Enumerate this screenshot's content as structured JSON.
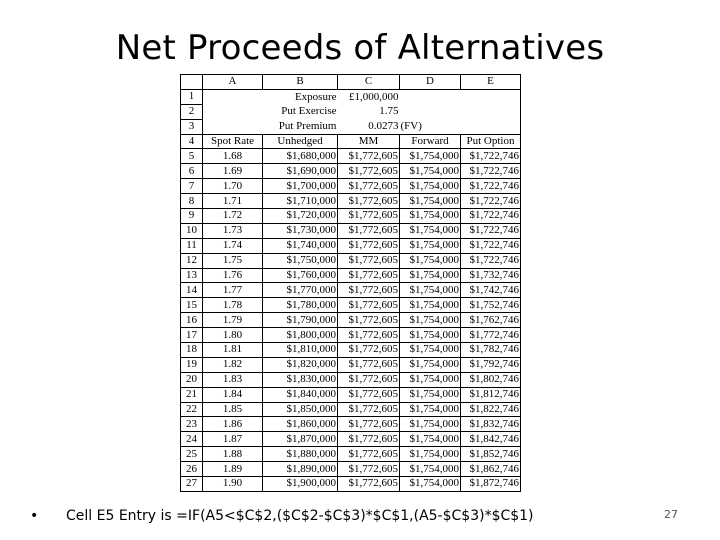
{
  "slide": {
    "title": "Net Proceeds of Alternatives",
    "footer_bullet": "•",
    "footer_text": "Cell E5 Entry is =IF(A5<$C$2,($C$2-$C$3)*$C$1,(A5-$C$3)*$C$1)",
    "page_number": "27"
  },
  "sheet": {
    "columns": [
      "A",
      "B",
      "C",
      "D",
      "E"
    ],
    "params": [
      {
        "row": "1",
        "label": "Exposure",
        "value": "£1,000,000",
        "note": ""
      },
      {
        "row": "2",
        "label": "Put Exercise",
        "value": "1.75",
        "note": ""
      },
      {
        "row": "3",
        "label": "Put Premium",
        "value": "0.0273",
        "note": "(FV)"
      }
    ],
    "header_row": {
      "row": "4",
      "cells": [
        "Spot Rate",
        "Unhedged",
        "MM",
        "Forward",
        "Put Option"
      ]
    },
    "rows": [
      {
        "row": "5",
        "cells": [
          "1.68",
          "$1,680,000",
          "$1,772,605",
          "$1,754,000",
          "$1,722,746"
        ]
      },
      {
        "row": "6",
        "cells": [
          "1.69",
          "$1,690,000",
          "$1,772,605",
          "$1,754,000",
          "$1,722,746"
        ]
      },
      {
        "row": "7",
        "cells": [
          "1.70",
          "$1,700,000",
          "$1,772,605",
          "$1,754,000",
          "$1,722,746"
        ]
      },
      {
        "row": "8",
        "cells": [
          "1.71",
          "$1,710,000",
          "$1,772,605",
          "$1,754,000",
          "$1,722,746"
        ]
      },
      {
        "row": "9",
        "cells": [
          "1.72",
          "$1,720,000",
          "$1,772,605",
          "$1,754,000",
          "$1,722,746"
        ]
      },
      {
        "row": "10",
        "cells": [
          "1.73",
          "$1,730,000",
          "$1,772,605",
          "$1,754,000",
          "$1,722,746"
        ]
      },
      {
        "row": "11",
        "cells": [
          "1.74",
          "$1,740,000",
          "$1,772,605",
          "$1,754,000",
          "$1,722,746"
        ]
      },
      {
        "row": "12",
        "cells": [
          "1.75",
          "$1,750,000",
          "$1,772,605",
          "$1,754,000",
          "$1,722,746"
        ]
      },
      {
        "row": "13",
        "cells": [
          "1.76",
          "$1,760,000",
          "$1,772,605",
          "$1,754,000",
          "$1,732,746"
        ]
      },
      {
        "row": "14",
        "cells": [
          "1.77",
          "$1,770,000",
          "$1,772,605",
          "$1,754,000",
          "$1,742,746"
        ]
      },
      {
        "row": "15",
        "cells": [
          "1.78",
          "$1,780,000",
          "$1,772,605",
          "$1,754,000",
          "$1,752,746"
        ]
      },
      {
        "row": "16",
        "cells": [
          "1.79",
          "$1,790,000",
          "$1,772,605",
          "$1,754,000",
          "$1,762,746"
        ]
      },
      {
        "row": "17",
        "cells": [
          "1.80",
          "$1,800,000",
          "$1,772,605",
          "$1,754,000",
          "$1,772,746"
        ]
      },
      {
        "row": "18",
        "cells": [
          "1.81",
          "$1,810,000",
          "$1,772,605",
          "$1,754,000",
          "$1,782,746"
        ]
      },
      {
        "row": "19",
        "cells": [
          "1.82",
          "$1,820,000",
          "$1,772,605",
          "$1,754,000",
          "$1,792,746"
        ]
      },
      {
        "row": "20",
        "cells": [
          "1.83",
          "$1,830,000",
          "$1,772,605",
          "$1,754,000",
          "$1,802,746"
        ]
      },
      {
        "row": "21",
        "cells": [
          "1.84",
          "$1,840,000",
          "$1,772,605",
          "$1,754,000",
          "$1,812,746"
        ]
      },
      {
        "row": "22",
        "cells": [
          "1.85",
          "$1,850,000",
          "$1,772,605",
          "$1,754,000",
          "$1,822,746"
        ]
      },
      {
        "row": "23",
        "cells": [
          "1.86",
          "$1,860,000",
          "$1,772,605",
          "$1,754,000",
          "$1,832,746"
        ]
      },
      {
        "row": "24",
        "cells": [
          "1.87",
          "$1,870,000",
          "$1,772,605",
          "$1,754,000",
          "$1,842,746"
        ]
      },
      {
        "row": "25",
        "cells": [
          "1.88",
          "$1,880,000",
          "$1,772,605",
          "$1,754,000",
          "$1,852,746"
        ]
      },
      {
        "row": "26",
        "cells": [
          "1.89",
          "$1,890,000",
          "$1,772,605",
          "$1,754,000",
          "$1,862,746"
        ]
      },
      {
        "row": "27",
        "cells": [
          "1.90",
          "$1,900,000",
          "$1,772,605",
          "$1,754,000",
          "$1,872,746"
        ]
      }
    ]
  }
}
